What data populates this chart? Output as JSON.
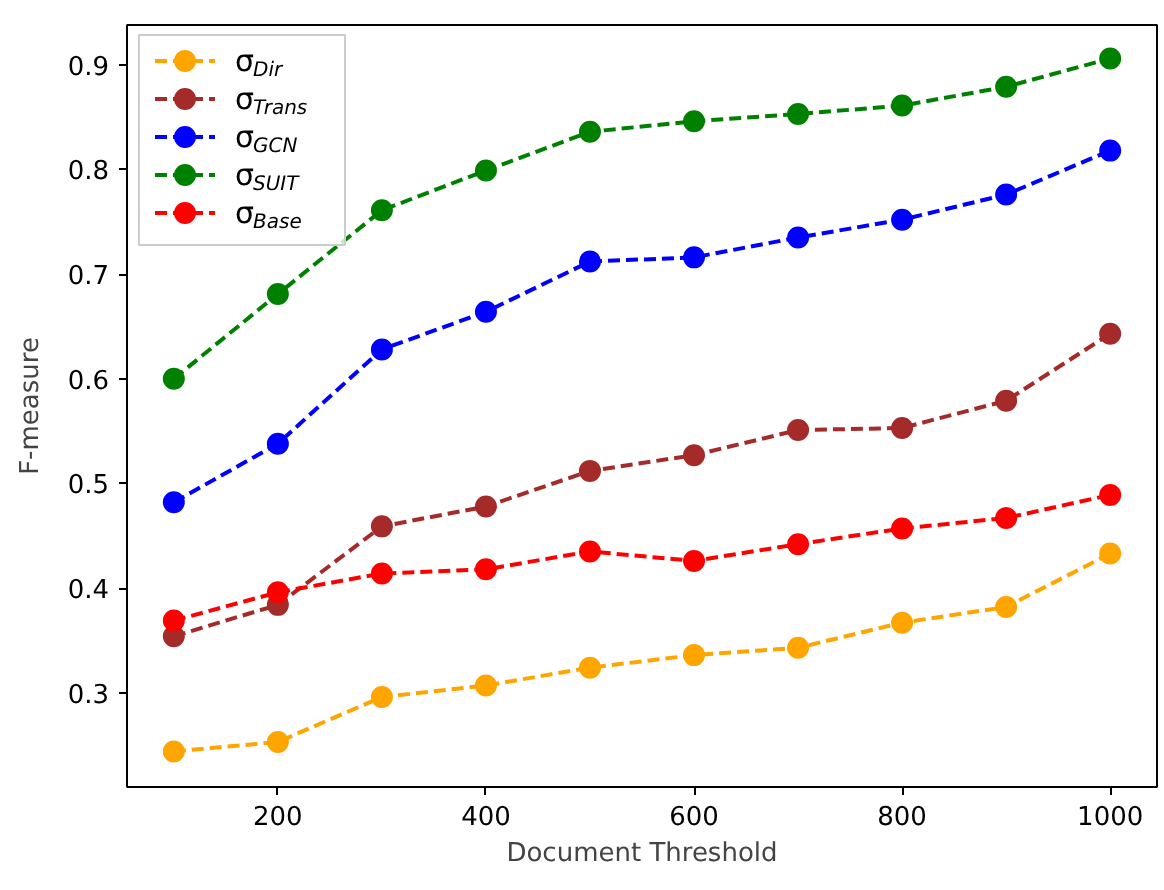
{
  "chart_data": {
    "type": "line",
    "xlabel": "Document Threshold",
    "ylabel": "F-measure",
    "x": [
      100,
      200,
      300,
      400,
      500,
      600,
      700,
      800,
      900,
      1000
    ],
    "xlim": [
      55,
      1045
    ],
    "xticks": [
      200,
      400,
      600,
      800,
      1000
    ],
    "ylim": [
      0.21,
      0.938
    ],
    "yticks": [
      0.3,
      0.4,
      0.5,
      0.6,
      0.7,
      0.8,
      0.9
    ],
    "marker": "circle",
    "line_style": "dashed",
    "legend": "top left",
    "grid": false,
    "series": [
      {
        "name": "σ$_{Dir}$",
        "color": "#ffa500",
        "values": [
          0.244,
          0.253,
          0.296,
          0.307,
          0.324,
          0.336,
          0.343,
          0.367,
          0.382,
          0.433
        ]
      },
      {
        "name": "σ$_{Trans}$",
        "color": "#a52a2a",
        "values": [
          0.354,
          0.384,
          0.459,
          0.478,
          0.512,
          0.527,
          0.551,
          0.553,
          0.579,
          0.643
        ]
      },
      {
        "name": "σ$_{GCN}$",
        "color": "#0000ff",
        "values": [
          0.482,
          0.538,
          0.628,
          0.664,
          0.712,
          0.716,
          0.735,
          0.752,
          0.776,
          0.818
        ]
      },
      {
        "name": "σ$_{SUIT}$",
        "color": "#008000",
        "values": [
          0.6,
          0.681,
          0.761,
          0.799,
          0.836,
          0.846,
          0.853,
          0.861,
          0.879,
          0.906
        ]
      },
      {
        "name": "σ$_{Base}$",
        "color": "#ff0000",
        "values": [
          0.369,
          0.396,
          0.414,
          0.418,
          0.435,
          0.426,
          0.442,
          0.457,
          0.467,
          0.489
        ]
      }
    ]
  }
}
